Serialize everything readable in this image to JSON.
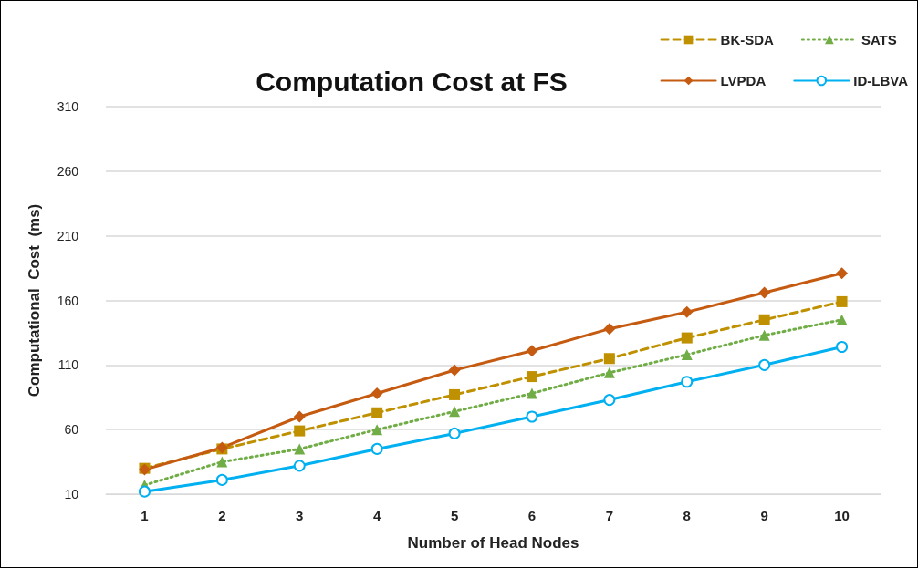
{
  "chart_data": {
    "type": "line",
    "title": "Computation Cost at FS",
    "xlabel": "Number of Head Nodes",
    "ylabel": "Computational  Cost  (ms)",
    "categories": [
      "1",
      "2",
      "3",
      "4",
      "5",
      "6",
      "7",
      "8",
      "9",
      "10"
    ],
    "series": [
      {
        "name": "BK-SDA",
        "color": "#bf9000",
        "marker": "square",
        "line_style": "dashed",
        "values": [
          30,
          45,
          59,
          73,
          87,
          101,
          115,
          131,
          145,
          159
        ]
      },
      {
        "name": "SATS",
        "color": "#70ad47",
        "marker": "triangle",
        "line_style": "dotted",
        "values": [
          17,
          35,
          45,
          60,
          74,
          88,
          104,
          118,
          133,
          145
        ]
      },
      {
        "name": "LVPDA",
        "color": "#c55a11",
        "marker": "diamond",
        "line_style": "solid",
        "values": [
          29,
          46,
          70,
          88,
          106,
          121,
          138,
          151,
          166,
          181
        ]
      },
      {
        "name": "ID-LBVA",
        "color": "#00b0f0",
        "marker": "circle",
        "line_style": "solid",
        "values": [
          12,
          21,
          32,
          45,
          57,
          70,
          83,
          97,
          110,
          124
        ]
      }
    ],
    "ylim": [
      10,
      310
    ],
    "yticks": [
      10,
      60,
      110,
      160,
      210,
      260,
      310
    ],
    "grid": "y",
    "legend": "top right"
  }
}
